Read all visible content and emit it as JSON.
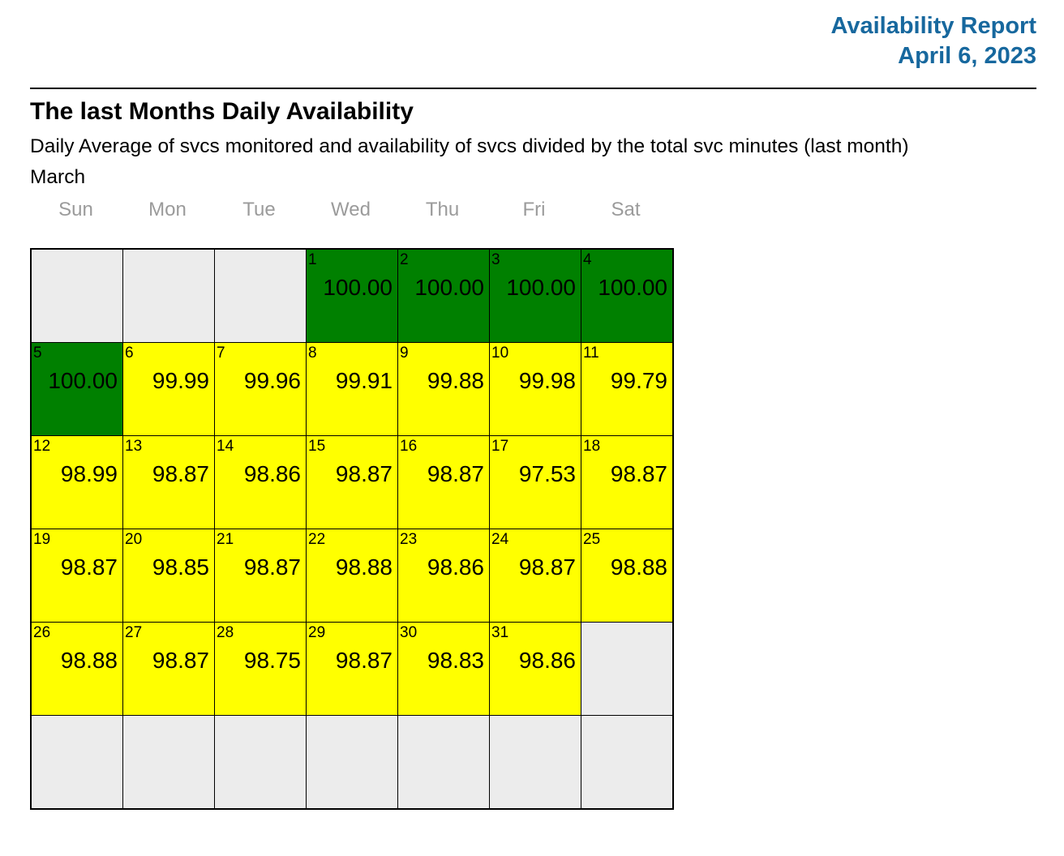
{
  "header": {
    "title": "Availability Report",
    "date": "April 6, 2023",
    "accent_color": "#17689E"
  },
  "section": {
    "title": "The last Months Daily Availability",
    "subtitle": "Daily Average of svcs monitored and availability of svcs divided by the total svc minutes (last month)",
    "month": "March"
  },
  "calendar": {
    "weekdays": [
      "Sun",
      "Mon",
      "Tue",
      "Wed",
      "Thu",
      "Fri",
      "Sat"
    ],
    "status_colors": {
      "green": "#008000",
      "yellow": "#FFFF00",
      "empty": "#ECECEC"
    },
    "weeks": [
      [
        null,
        null,
        null,
        {
          "day": 1,
          "value": "100.00",
          "status": "green"
        },
        {
          "day": 2,
          "value": "100.00",
          "status": "green"
        },
        {
          "day": 3,
          "value": "100.00",
          "status": "green"
        },
        {
          "day": 4,
          "value": "100.00",
          "status": "green"
        }
      ],
      [
        {
          "day": 5,
          "value": "100.00",
          "status": "green"
        },
        {
          "day": 6,
          "value": "99.99",
          "status": "yellow"
        },
        {
          "day": 7,
          "value": "99.96",
          "status": "yellow"
        },
        {
          "day": 8,
          "value": "99.91",
          "status": "yellow"
        },
        {
          "day": 9,
          "value": "99.88",
          "status": "yellow"
        },
        {
          "day": 10,
          "value": "99.98",
          "status": "yellow"
        },
        {
          "day": 11,
          "value": "99.79",
          "status": "yellow"
        }
      ],
      [
        {
          "day": 12,
          "value": "98.99",
          "status": "yellow"
        },
        {
          "day": 13,
          "value": "98.87",
          "status": "yellow"
        },
        {
          "day": 14,
          "value": "98.86",
          "status": "yellow"
        },
        {
          "day": 15,
          "value": "98.87",
          "status": "yellow"
        },
        {
          "day": 16,
          "value": "98.87",
          "status": "yellow"
        },
        {
          "day": 17,
          "value": "97.53",
          "status": "yellow"
        },
        {
          "day": 18,
          "value": "98.87",
          "status": "yellow"
        }
      ],
      [
        {
          "day": 19,
          "value": "98.87",
          "status": "yellow"
        },
        {
          "day": 20,
          "value": "98.85",
          "status": "yellow"
        },
        {
          "day": 21,
          "value": "98.87",
          "status": "yellow"
        },
        {
          "day": 22,
          "value": "98.88",
          "status": "yellow"
        },
        {
          "day": 23,
          "value": "98.86",
          "status": "yellow"
        },
        {
          "day": 24,
          "value": "98.87",
          "status": "yellow"
        },
        {
          "day": 25,
          "value": "98.88",
          "status": "yellow"
        }
      ],
      [
        {
          "day": 26,
          "value": "98.88",
          "status": "yellow"
        },
        {
          "day": 27,
          "value": "98.87",
          "status": "yellow"
        },
        {
          "day": 28,
          "value": "98.75",
          "status": "yellow"
        },
        {
          "day": 29,
          "value": "98.87",
          "status": "yellow"
        },
        {
          "day": 30,
          "value": "98.83",
          "status": "yellow"
        },
        {
          "day": 31,
          "value": "98.86",
          "status": "yellow"
        },
        null
      ],
      [
        null,
        null,
        null,
        null,
        null,
        null,
        null
      ]
    ]
  }
}
